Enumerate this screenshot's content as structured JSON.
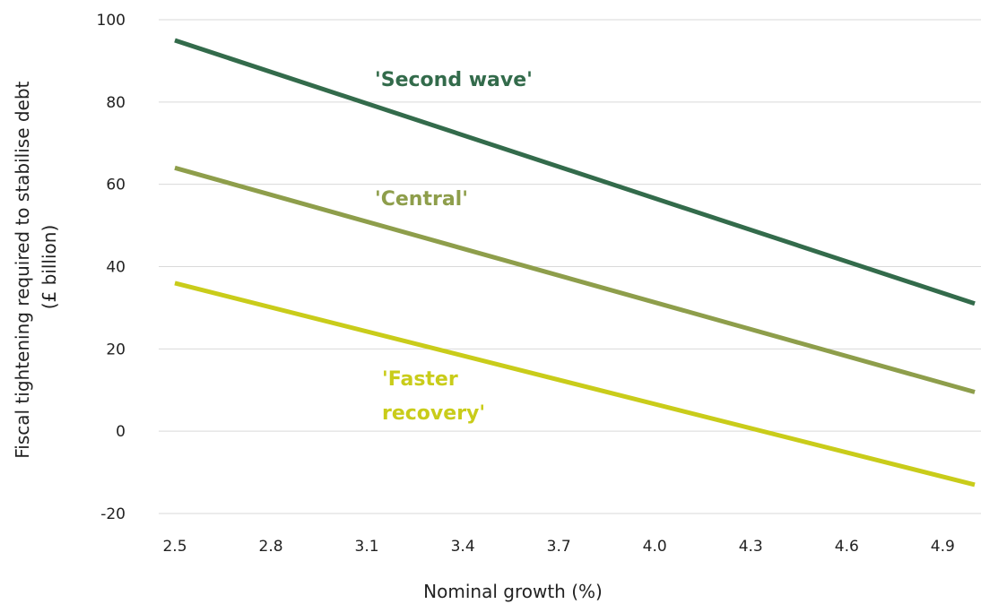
{
  "chart_data": {
    "type": "line",
    "title": "",
    "xlabel": "Nominal growth (%)",
    "ylabel_lines": [
      "Fiscal tightening required to stabilise debt",
      "(£ billion)"
    ],
    "xlim": [
      2.5,
      5.0
    ],
    "ylim": [
      -20,
      100
    ],
    "yticks": [
      -20,
      0,
      20,
      40,
      60,
      80,
      100
    ],
    "xticks": [
      "2.5",
      "2.8",
      "3.1",
      "3.4",
      "3.7",
      "4.0",
      "4.3",
      "4.6",
      "4.9"
    ],
    "grid": true,
    "legend": "inline labels",
    "series": [
      {
        "name": "'Second wave'",
        "label_lines": [
          "'Second wave'"
        ],
        "color": "#336b4b",
        "x": [
          2.5,
          5.0
        ],
        "y": [
          95,
          31
        ]
      },
      {
        "name": "'Central'",
        "label_lines": [
          "'Central'"
        ],
        "color": "#8e9e4b",
        "x": [
          2.5,
          5.0
        ],
        "y": [
          64,
          9.5
        ]
      },
      {
        "name": "'Faster recovery'",
        "label_lines": [
          "'Faster",
          "recovery'"
        ],
        "color": "#c9cc1a",
        "x": [
          2.5,
          5.0
        ],
        "y": [
          36,
          -13
        ]
      }
    ]
  }
}
